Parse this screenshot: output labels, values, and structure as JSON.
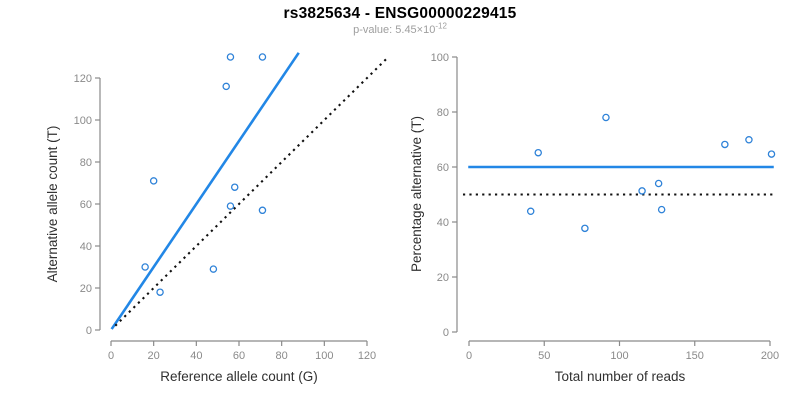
{
  "title": "rs3825634 - ENSG00000229415",
  "subtitle": {
    "text": "p-value: 5.45×10",
    "exponent": "-12"
  },
  "colors": {
    "line_blue": "#2287e6",
    "point_blue": "#2e82d8",
    "dotted_black": "#111111",
    "axis_gray": "#8a8a8a",
    "tick_label_gray": "#8a8a8a",
    "axis_title_dark": "#303030",
    "subtitle_gray": "#9e9e9e"
  },
  "chart_data": [
    {
      "type": "scatter",
      "panel": "left",
      "xlabel": "Reference allele count (G)",
      "ylabel": "Alternative allele count (T)",
      "xlim": [
        0,
        130
      ],
      "ylim": [
        0,
        132
      ],
      "xticks": [
        0,
        20,
        40,
        60,
        80,
        100,
        120
      ],
      "yticks": [
        0,
        20,
        40,
        60,
        80,
        100,
        120
      ],
      "grid": false,
      "legend": "none",
      "points": [
        [
          16,
          30
        ],
        [
          20,
          71
        ],
        [
          23,
          18
        ],
        [
          48,
          29
        ],
        [
          54,
          116
        ],
        [
          56,
          59
        ],
        [
          56,
          130
        ],
        [
          58,
          68
        ],
        [
          71,
          57
        ],
        [
          71,
          130
        ]
      ],
      "lines": [
        {
          "name": "fit-line",
          "style": "solid",
          "color_key": "line_blue",
          "x1": 0.3,
          "y1": 0.45,
          "x2": 88,
          "y2": 132
        },
        {
          "name": "identity-line",
          "style": "dotted",
          "color_key": "dotted_black",
          "x1": 2,
          "y1": 2,
          "x2": 129.5,
          "y2": 129.5
        }
      ]
    },
    {
      "type": "scatter",
      "panel": "right",
      "xlabel": "Total number of reads",
      "ylabel": "Percentage alternative (T)",
      "xlim": [
        0,
        205
      ],
      "ylim": [
        0,
        100
      ],
      "xticks": [
        0,
        50,
        100,
        150,
        200
      ],
      "yticks": [
        0,
        20,
        40,
        60,
        80,
        100
      ],
      "grid": false,
      "legend": "none",
      "points": [
        [
          41,
          43.9
        ],
        [
          46,
          65.2
        ],
        [
          77,
          37.7
        ],
        [
          91,
          78
        ],
        [
          115,
          51.3
        ],
        [
          126,
          54
        ],
        [
          128,
          44.5
        ],
        [
          170,
          68.2
        ],
        [
          186,
          69.9
        ],
        [
          201,
          64.7
        ]
      ],
      "lines": [
        {
          "name": "mean-percentage-line",
          "style": "solid",
          "color_key": "line_blue",
          "x1": -0.5,
          "y1": 60,
          "x2": 202.5,
          "y2": 60
        },
        {
          "name": "fifty-percent-line",
          "style": "dotted",
          "color_key": "dotted_black",
          "x1": -4,
          "y1": 50,
          "x2": 203,
          "y2": 50
        }
      ]
    }
  ]
}
